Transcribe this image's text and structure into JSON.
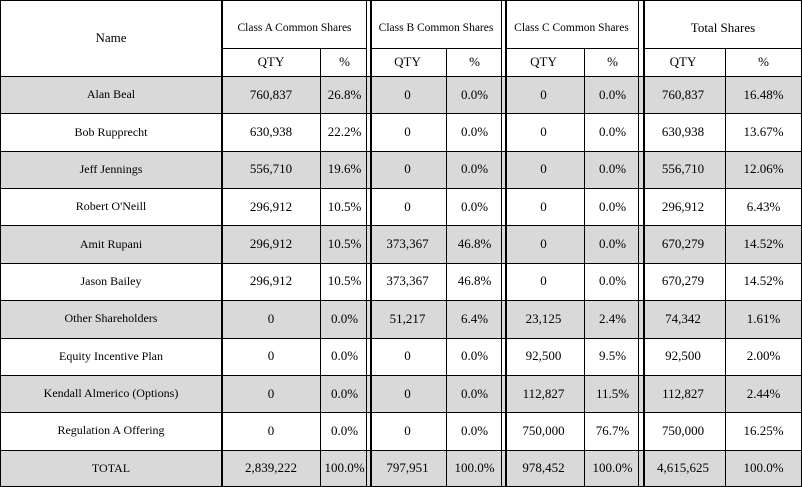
{
  "header": {
    "name": "Name",
    "groups": [
      "Class A Common Shares",
      "Class B Common Shares",
      "Class C Common Shares",
      "Total Shares"
    ],
    "subheaders": [
      "QTY",
      "%",
      "QTY",
      "%",
      "QTY",
      "%",
      "QTY",
      "%"
    ]
  },
  "rows": [
    [
      "Alan Beal",
      "760,837",
      "26.8%",
      "0",
      "0.0%",
      "0",
      "0.0%",
      "760,837",
      "16.48%"
    ],
    [
      "Bob Rupprecht",
      "630,938",
      "22.2%",
      "0",
      "0.0%",
      "0",
      "0.0%",
      "630,938",
      "13.67%"
    ],
    [
      "Jeff Jennings",
      "556,710",
      "19.6%",
      "0",
      "0.0%",
      "0",
      "0.0%",
      "556,710",
      "12.06%"
    ],
    [
      "Robert O'Neill",
      "296,912",
      "10.5%",
      "0",
      "0.0%",
      "0",
      "0.0%",
      "296,912",
      "6.43%"
    ],
    [
      "Amit Rupani",
      "296,912",
      "10.5%",
      "373,367",
      "46.8%",
      "0",
      "0.0%",
      "670,279",
      "14.52%"
    ],
    [
      "Jason Bailey",
      "296,912",
      "10.5%",
      "373,367",
      "46.8%",
      "0",
      "0.0%",
      "670,279",
      "14.52%"
    ],
    [
      "Other Shareholders",
      "0",
      "0.0%",
      "51,217",
      "6.4%",
      "23,125",
      "2.4%",
      "74,342",
      "1.61%"
    ],
    [
      "Equity Incentive Plan",
      "0",
      "0.0%",
      "0",
      "0.0%",
      "92,500",
      "9.5%",
      "92,500",
      "2.00%"
    ],
    [
      "Kendall Almerico (Options)",
      "0",
      "0.0%",
      "0",
      "0.0%",
      "112,827",
      "11.5%",
      "112,827",
      "2.44%"
    ],
    [
      "Regulation A Offering",
      "0",
      "0.0%",
      "0",
      "0.0%",
      "750,000",
      "76.7%",
      "750,000",
      "16.25%"
    ]
  ],
  "total": [
    "TOTAL",
    "2,839,222",
    "100.0%",
    "797,951",
    "100.0%",
    "978,452",
    "100.0%",
    "4,615,625",
    "100.0%"
  ]
}
